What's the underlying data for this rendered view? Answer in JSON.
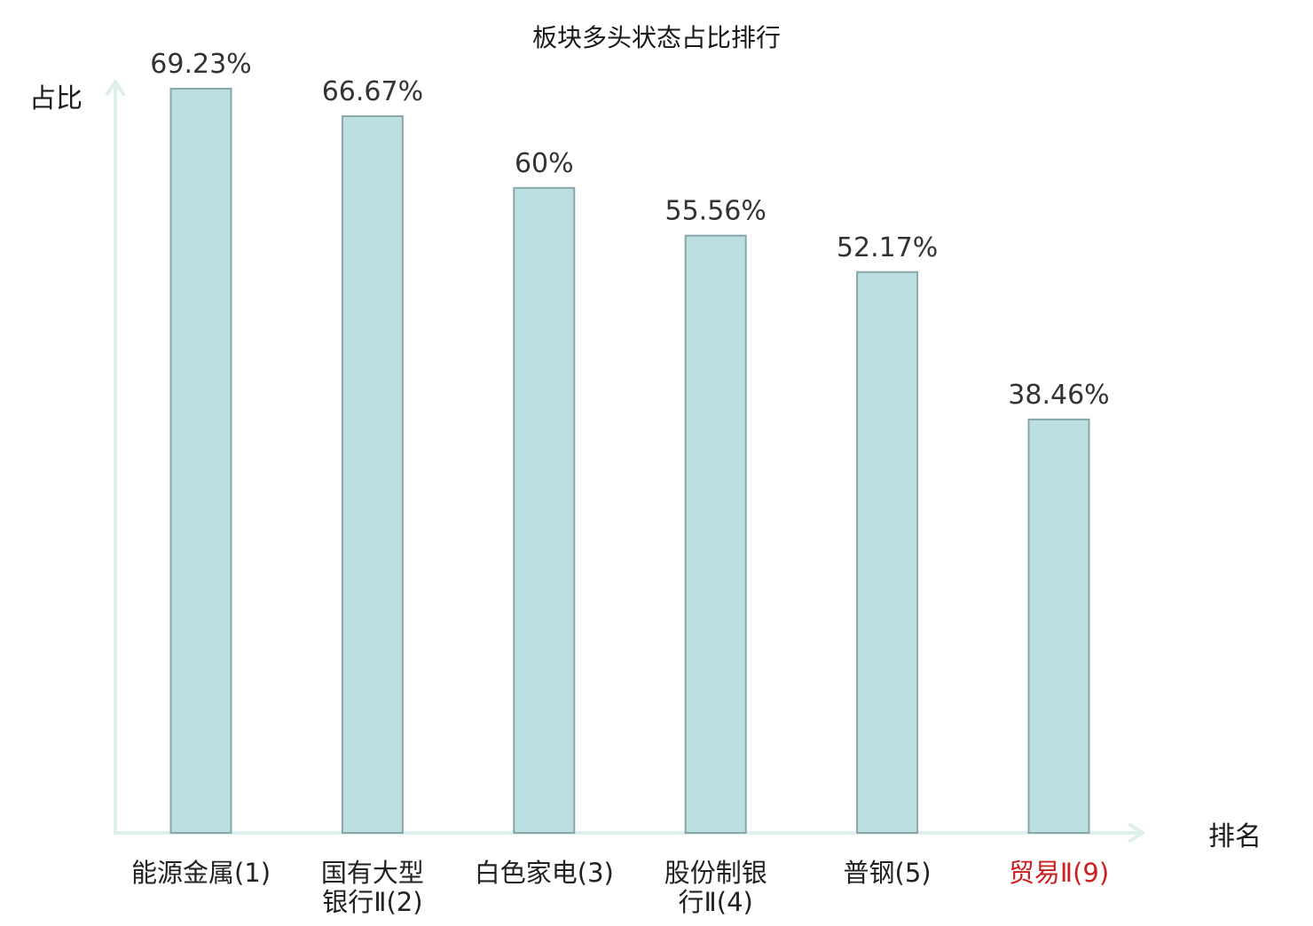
{
  "chart_data": {
    "type": "bar",
    "title": "板块多头状态占比排行",
    "ylabel": "占比",
    "xlabel": "排名",
    "categories": [
      [
        "能源金属(1)"
      ],
      [
        "国有大型",
        "银行Ⅱ(2)"
      ],
      [
        "白色家电(3)"
      ],
      [
        "股份制银",
        "行Ⅱ(4)"
      ],
      [
        "普钢(5)"
      ],
      [
        "贸易Ⅱ(9)"
      ]
    ],
    "values": [
      69.23,
      66.67,
      60,
      55.56,
      52.17,
      38.46
    ],
    "value_labels": [
      "69.23%",
      "66.67%",
      "60%",
      "55.56%",
      "52.17%",
      "38.46%"
    ],
    "highlight_index": 5,
    "ylim": [
      0,
      69.23
    ],
    "grid": false,
    "colors": {
      "bar_fill": "#bce0e2",
      "bar_stroke": "#8aa6a8",
      "axis": "#ddf0ee",
      "highlight_text": "#cc1f1f",
      "value_text": "#333333"
    }
  }
}
